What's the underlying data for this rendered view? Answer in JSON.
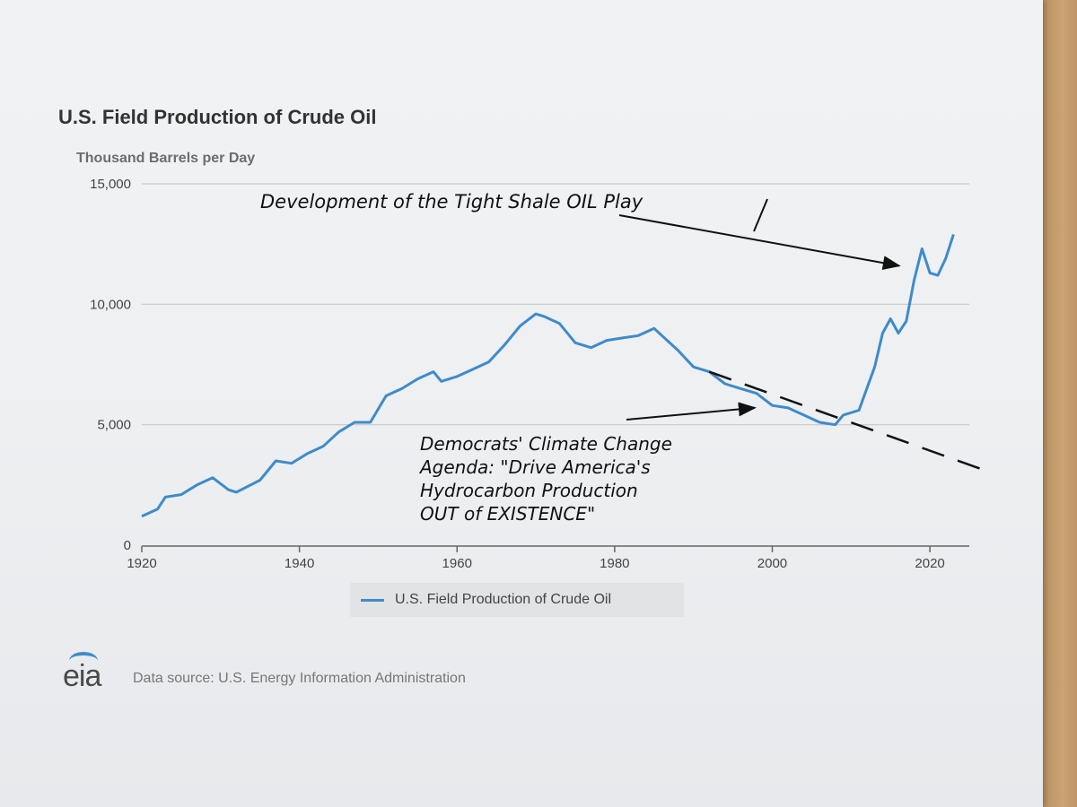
{
  "header": {
    "title": "U.S. Field Production of Crude Oil",
    "subtitle": "Thousand Barrels per Day"
  },
  "legend": {
    "label": "U.S. Field Production of Crude Oil"
  },
  "footer": {
    "logo_text": "eia",
    "source": "Data source: U.S. Energy Information Administration"
  },
  "colors": {
    "series": "#3f8bc9",
    "grid": "#c8c8c8",
    "annotation": "#111111"
  },
  "annotations": {
    "shale_note": "Development of the Tight Shale OIL Play",
    "climate_note": [
      "Democrats' Climate Change",
      "Agenda: \"Drive America's",
      "Hydrocarbon Production",
      "OUT of EXISTENCE\""
    ]
  },
  "chart_data": {
    "type": "line",
    "title": "U.S. Field Production of Crude Oil",
    "ylabel": "Thousand Barrels per Day",
    "xlabel": "",
    "xlim": [
      1920,
      2025
    ],
    "ylim": [
      0,
      15000
    ],
    "x_ticks": [
      1920,
      1940,
      1960,
      1980,
      2000,
      2020
    ],
    "x_tick_labels": [
      "1920",
      "1940",
      "1960",
      "1980",
      "2000",
      "2020"
    ],
    "y_ticks": [
      0,
      5000,
      10000,
      15000
    ],
    "y_tick_labels": [
      "0",
      "5,000",
      "10,000",
      "15,000"
    ],
    "grid": true,
    "series": [
      {
        "name": "U.S. Field Production of Crude Oil",
        "x": [
          1920,
          1922,
          1923,
          1925,
          1927,
          1929,
          1931,
          1932,
          1935,
          1937,
          1939,
          1941,
          1943,
          1945,
          1947,
          1949,
          1951,
          1953,
          1955,
          1957,
          1958,
          1960,
          1962,
          1964,
          1966,
          1968,
          1970,
          1971,
          1973,
          1975,
          1977,
          1979,
          1981,
          1983,
          1985,
          1986,
          1988,
          1990,
          1992,
          1994,
          1996,
          1998,
          2000,
          2002,
          2004,
          2006,
          2008,
          2009,
          2011,
          2012,
          2013,
          2014,
          2015,
          2016,
          2017,
          2018,
          2019,
          2020,
          2021,
          2022,
          2023
        ],
        "values": [
          1200,
          1500,
          2000,
          2100,
          2500,
          2800,
          2300,
          2200,
          2700,
          3500,
          3400,
          3800,
          4100,
          4700,
          5100,
          5100,
          6200,
          6500,
          6900,
          7200,
          6800,
          7000,
          7300,
          7600,
          8300,
          9100,
          9600,
          9500,
          9200,
          8400,
          8200,
          8500,
          8600,
          8700,
          9000,
          8700,
          8100,
          7400,
          7200,
          6700,
          6500,
          6300,
          5800,
          5700,
          5400,
          5100,
          5000,
          5400,
          5600,
          6500,
          7400,
          8800,
          9400,
          8800,
          9300,
          11000,
          12300,
          11300,
          11200,
          11900,
          12900
        ]
      }
    ],
    "annotations": [
      {
        "type": "dashed-trend",
        "from": [
          1992,
          7200
        ],
        "to": [
          2025,
          2700
        ]
      },
      {
        "type": "arrow",
        "target": [
          2017,
          11600
        ]
      },
      {
        "type": "arrow",
        "target": [
          1998,
          6000
        ]
      }
    ]
  }
}
